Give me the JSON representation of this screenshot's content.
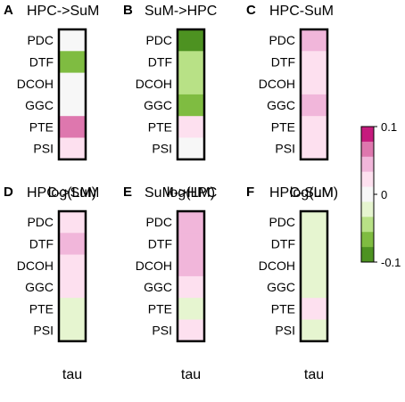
{
  "chart_data": {
    "type": "heatmap",
    "rows": [
      "PDC",
      "DTF",
      "DCOH",
      "GGC",
      "PTE",
      "PSI"
    ],
    "colorbar": {
      "range": [
        -0.1,
        0.1
      ],
      "tick_labels": [
        "0.1",
        "0",
        "-0.1"
      ],
      "ticks": [
        0.1,
        0,
        -0.1
      ],
      "colors": [
        "#c51b7d",
        "#de77ae",
        "#f1b6da",
        "#fde0ef",
        "#f7f7f7",
        "#e6f5d0",
        "#b8e186",
        "#7fbc41",
        "#4d9221"
      ]
    },
    "panels": [
      {
        "letter": "A",
        "title": "HPC->SuM",
        "xlabel": "log(LM)",
        "values": [
          0.005,
          -0.06,
          0.01,
          0.01,
          0.06,
          0.02
        ]
      },
      {
        "letter": "B",
        "title": "SuM->HPC",
        "xlabel": "log(LM)",
        "values": [
          -0.09,
          -0.05,
          -0.05,
          -0.07,
          0.02,
          -0.01
        ]
      },
      {
        "letter": "C",
        "title": "HPC-SuM",
        "xlabel": "log(LM)",
        "values": [
          0.04,
          0.02,
          0.02,
          0.04,
          0.02,
          0.02
        ]
      },
      {
        "letter": "D",
        "title": "HPC->SuM",
        "xlabel": "tau",
        "values": [
          0.03,
          0.05,
          0.025,
          0.025,
          -0.015,
          -0.015
        ]
      },
      {
        "letter": "E",
        "title": "SuM->HPC",
        "xlabel": "tau",
        "values": [
          0.04,
          0.05,
          0.05,
          0.025,
          -0.015,
          0.025
        ]
      },
      {
        "letter": "F",
        "title": "HPC-SuM",
        "xlabel": "tau",
        "values": [
          -0.015,
          -0.015,
          -0.015,
          -0.015,
          0.025,
          -0.015
        ]
      }
    ]
  }
}
